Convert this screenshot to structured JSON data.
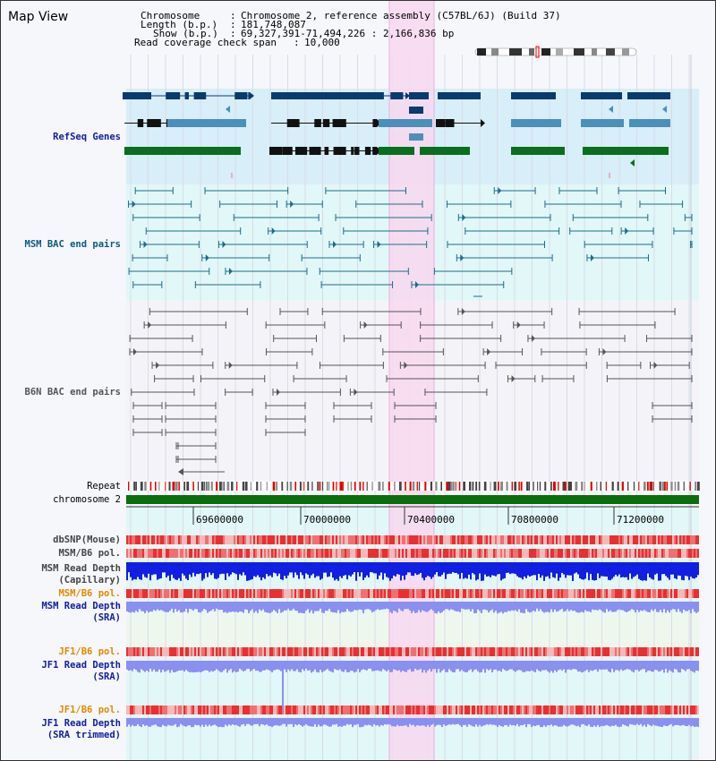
{
  "page": {
    "title": "Map View"
  },
  "info": {
    "chromosome_label": "Chromosome",
    "chromosome_value": "Chromosome 2, reference assembly (C57BL/6J) (Build 37)",
    "length_label": "Length (b.p.)",
    "length_value": "181,748,087",
    "show_label": "Show (b.p.)",
    "show_value": "69,327,391-71,494,226 : 2,166,836 bp",
    "coverage_label": "Read coverage check span",
    "coverage_value": "10,000"
  },
  "tracks": {
    "refseq": "RefSeq Genes",
    "msm_bac": "MSM BAC end pairs",
    "b6n_bac": "B6N BAC end pairs",
    "repeat": "Repeat",
    "chromosome": "chromosome 2",
    "dbsnp": "dbSNP(Mouse)",
    "msm_b6_pol_1": "MSM/B6 pol.",
    "msm_read_depth_cap_1": "MSM Read Depth",
    "msm_read_depth_cap_2": "(Capillary)",
    "msm_b6_pol_2": "MSM/B6 pol.",
    "msm_read_depth_sra_1": "MSM Read Depth",
    "msm_read_depth_sra_2": "(SRA)",
    "jf1_b6_pol_1": "JF1/B6 pol.",
    "jf1_read_depth_sra_1": "JF1 Read Depth",
    "jf1_read_depth_sra_2": "(SRA)",
    "jf1_b6_pol_2": "JF1/B6 pol.",
    "jf1_read_depth_trim_1": "JF1 Read Depth",
    "jf1_read_depth_trim_2": "(SRA trimmed)"
  },
  "axis": {
    "ticks": [
      "69600000",
      "70000000",
      "70400000",
      "70800000",
      "71200000"
    ]
  },
  "colors": {
    "refseq_dark": "#0a3a6e",
    "refseq_mid": "#4a90b8",
    "refseq_green": "#0a6e1e",
    "msm_bac": "#1a6e8a",
    "b6n_bac": "#555555",
    "highlight": "#f8d8f0",
    "chromosome_bar": "#0a6e0a",
    "depth_capillary": "#1020e0",
    "depth_sra": "#8a90f0",
    "label_blue": "#1020a0",
    "label_orange": "#e08a00",
    "label_teal": "#0a5a80"
  }
}
